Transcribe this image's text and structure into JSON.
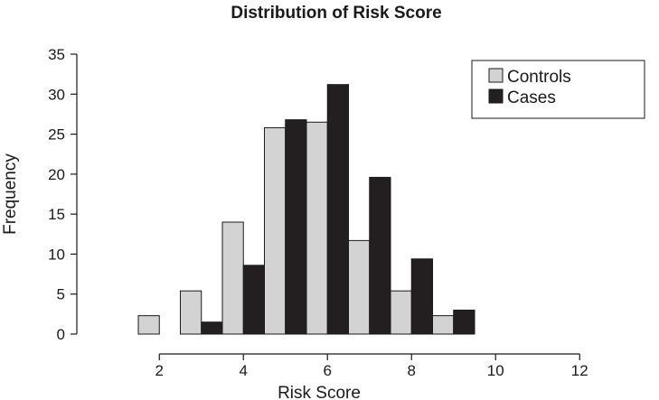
{
  "chart_data": {
    "type": "bar",
    "title": "Distribution of Risk Score",
    "xlabel": "Risk Score",
    "ylabel": "Frequency",
    "ylim": [
      0,
      35
    ],
    "xlim": [
      0,
      13.5
    ],
    "yticks": [
      0,
      5,
      10,
      15,
      20,
      25,
      30,
      35
    ],
    "xticks": [
      2,
      4,
      6,
      8,
      10,
      12
    ],
    "x": [
      1,
      2,
      3,
      4,
      5,
      6,
      7,
      8,
      9,
      10,
      11,
      12,
      13
    ],
    "series": [
      {
        "name": "Controls",
        "color": "#d3d3d3",
        "values": [
          0,
          2.3,
          5.4,
          14.0,
          25.8,
          26.5,
          11.7,
          5.4,
          2.3,
          0,
          0,
          0,
          0
        ]
      },
      {
        "name": "Cases",
        "color": "#231f20",
        "values": [
          0,
          0,
          1.5,
          8.6,
          26.8,
          31.2,
          19.6,
          9.4,
          3.0,
          0,
          0,
          0,
          0
        ]
      }
    ],
    "legend_position": "top-right",
    "grid": false
  }
}
